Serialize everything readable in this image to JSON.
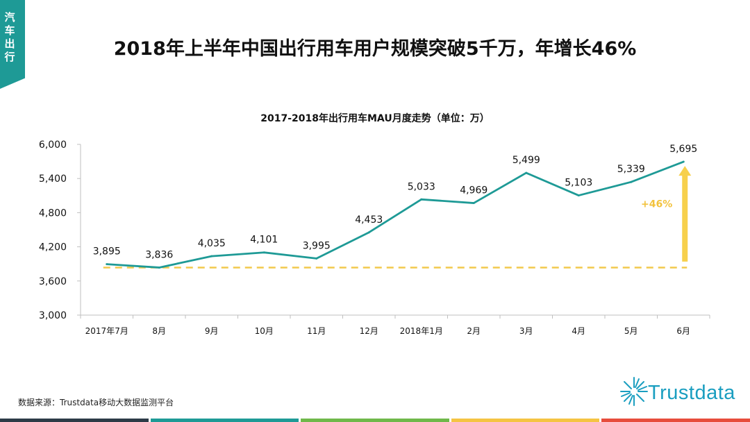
{
  "category_tab": "汽车出行",
  "page_title": "2018年上半年中国出行用车用户规模突破5千万，年增长46%",
  "source_note": "数据来源：Trustdata移动大数据监测平台",
  "logo_text": "Trustdata",
  "colors": {
    "accent": "#1e9a96",
    "line": "#1e9a96",
    "baseline": "#f2c94c",
    "arrow": "#f7d04c",
    "growth_label": "#f2c23c",
    "footer": [
      "#2d3b47",
      "#1e9a96",
      "#6fb84a",
      "#f5c443",
      "#e74c3c"
    ]
  },
  "chart_data": {
    "type": "line",
    "title": "2017-2018年出行用车MAU月度走势（单位：万）",
    "categories": [
      "2017年7月",
      "8月",
      "9月",
      "10月",
      "11月",
      "12月",
      "2018年1月",
      "2月",
      "3月",
      "4月",
      "5月",
      "6月"
    ],
    "series": [
      {
        "name": "MAU",
        "values": [
          3895,
          3836,
          4035,
          4101,
          3995,
          4453,
          5033,
          4969,
          5499,
          5103,
          5339,
          5695
        ]
      }
    ],
    "data_labels": [
      "3,895",
      "3,836",
      "4,035",
      "4,101",
      "3,995",
      "4,453",
      "5,033",
      "4,969",
      "5,499",
      "5,103",
      "5,339",
      "5,695"
    ],
    "y_ticks": [
      3000,
      3600,
      4200,
      4800,
      5400,
      6000
    ],
    "y_tick_labels": [
      "3,000",
      "3,600",
      "4,200",
      "4,800",
      "5,400",
      "6,000"
    ],
    "ylim": [
      3000,
      6000
    ],
    "baseline_value": 3836,
    "growth_annotation": "+46%",
    "grid": false,
    "xlabel": "",
    "ylabel": ""
  }
}
